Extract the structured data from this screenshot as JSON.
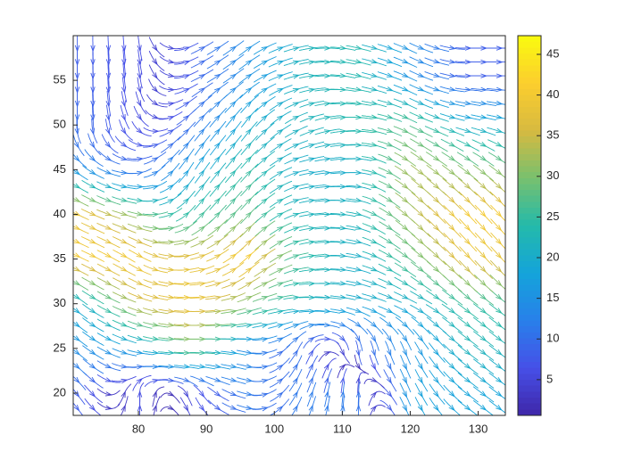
{
  "chart_data": {
    "type": "streamline",
    "x": [
      72,
      80,
      88,
      96,
      104,
      112,
      120,
      128
    ],
    "y": [
      20,
      25,
      30,
      35,
      40,
      45,
      50,
      55
    ],
    "u": [
      [
        5.7,
        0,
        3,
        11.8,
        6,
        0,
        9,
        15.7
      ],
      [
        13.1,
        17.7,
        30,
        14.7,
        5,
        1.7,
        7.5,
        19.1
      ],
      [
        17.4,
        34,
        40,
        29.1,
        22,
        19.7,
        18.8,
        21.8
      ],
      [
        37.6,
        36.4,
        37.4,
        34.4,
        24.6,
        19.7,
        24.4,
        29.3
      ],
      [
        35.7,
        29.5,
        19.3,
        21.6,
        21.7,
        21.7,
        27.1,
        30.8
      ],
      [
        13.1,
        9.8,
        11.5,
        19.3,
        19.7,
        20,
        28.7,
        26.1
      ],
      [
        0,
        4.3,
        7.7,
        14.2,
        20.7,
        24,
        26.3,
        19.7
      ],
      [
        0,
        1.0,
        7.5,
        13.1,
        21.6,
        23.5,
        14.1,
        8
      ]
    ],
    "v": [
      [
        -5.7,
        6,
        -5.2,
        -2.1,
        10.4,
        12,
        -15.7,
        -9
      ],
      [
        -7.5,
        -3.1,
        0,
        -2.6,
        8.7,
        -9.8,
        -13.1,
        -11
      ],
      [
        -10,
        -9.1,
        0,
        7.8,
        0,
        -3.4,
        -6.8,
        -12.5
      ],
      [
        -13.6,
        -16.8,
        6.5,
        23.9,
        4.3,
        -3.4,
        -14,
        -24.3
      ],
      [
        -12.9,
        -5.1,
        16,
        17.9,
        3.7,
        -3.7,
        -18.8,
        -25.6
      ],
      [
        -7.5,
        1.7,
        13.9,
        16,
        3.4,
        0,
        -16.5,
        -15
      ],
      [
        -10,
        -4.3,
        6.4,
        14.2,
        7.5,
        0,
        -9.5,
        -3.4
      ],
      [
        -8,
        -5.9,
        2.7,
        7.5,
        3.7,
        -4.1,
        -5.1,
        0
      ]
    ],
    "xlim": [
      70.4,
      134
    ],
    "ylim": [
      17.5,
      60
    ],
    "xticks": [
      80,
      90,
      100,
      110,
      120,
      130
    ],
    "yticks": [
      20,
      25,
      30,
      35,
      40,
      45,
      50,
      55
    ],
    "colorbar": {
      "clim": [
        0.6,
        47.3
      ],
      "ticks": [
        5,
        10,
        15,
        20,
        25,
        30,
        35,
        40,
        45
      ],
      "colormap": "parula"
    }
  }
}
